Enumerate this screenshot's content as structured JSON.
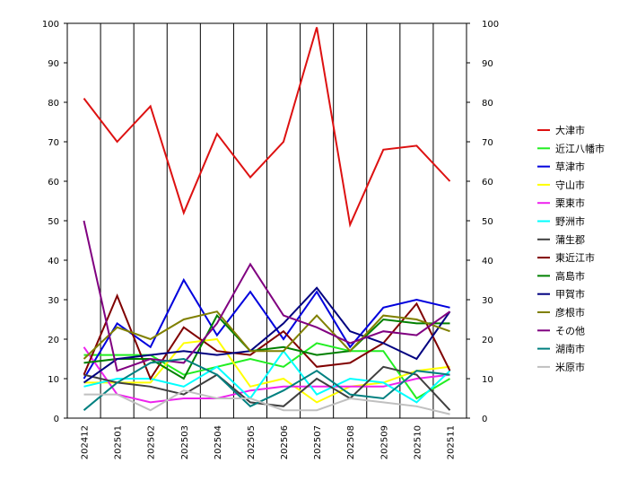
{
  "chart_data": {
    "type": "line",
    "categories": [
      "202412",
      "202501",
      "202502",
      "202503",
      "202504",
      "202505",
      "202506",
      "202507",
      "202508",
      "202509",
      "202510",
      "202511"
    ],
    "ylim": [
      0,
      100
    ],
    "y_ticks": [
      0,
      10,
      20,
      30,
      40,
      50,
      60,
      70,
      80,
      90,
      100
    ],
    "right_axis_mirrored": true,
    "grid": {
      "vertical": true,
      "horizontal": false
    },
    "legend_position": "right",
    "series": [
      {
        "name": "大津市",
        "color": "#dd1111",
        "values": [
          81,
          70,
          79,
          52,
          72,
          61,
          70,
          99,
          49,
          68,
          69,
          60
        ]
      },
      {
        "name": "近江八幡市",
        "color": "#22ee22",
        "values": [
          16,
          16,
          16,
          11,
          13,
          15,
          13,
          19,
          17,
          17,
          5,
          10
        ]
      },
      {
        "name": "草津市",
        "color": "#0000dd",
        "values": [
          10,
          24,
          18,
          35,
          21,
          32,
          20,
          32,
          18,
          28,
          30,
          28
        ]
      },
      {
        "name": "守山市",
        "color": "#ffff00",
        "values": [
          9,
          9,
          9,
          19,
          20,
          8,
          10,
          4,
          8,
          9,
          12,
          13
        ]
      },
      {
        "name": "栗東市",
        "color": "#ee22ee",
        "values": [
          18,
          6,
          4,
          5,
          5,
          7,
          8,
          8,
          8,
          8,
          10,
          11
        ]
      },
      {
        "name": "野洲市",
        "color": "#00ffff",
        "values": [
          8,
          10,
          10,
          8,
          13,
          5,
          17,
          6,
          10,
          9,
          4,
          12
        ]
      },
      {
        "name": "蒲生郡",
        "color": "#404040",
        "values": [
          11,
          9,
          8,
          6,
          11,
          4,
          3,
          10,
          5,
          13,
          11,
          2
        ]
      },
      {
        "name": "東近江市",
        "color": "#800000",
        "values": [
          11,
          31,
          10,
          23,
          17,
          16,
          22,
          13,
          14,
          19,
          29,
          12
        ]
      },
      {
        "name": "高島市",
        "color": "#008000",
        "values": [
          14,
          15,
          15,
          10,
          26,
          17,
          18,
          16,
          17,
          25,
          24,
          24
        ]
      },
      {
        "name": "甲賀市",
        "color": "#000080",
        "values": [
          9,
          15,
          16,
          17,
          16,
          17,
          24,
          33,
          22,
          19,
          15,
          27
        ]
      },
      {
        "name": "彦根市",
        "color": "#808000",
        "values": [
          15,
          23,
          20,
          25,
          27,
          17,
          17,
          26,
          17,
          26,
          25,
          22
        ]
      },
      {
        "name": "その他",
        "color": "#800080",
        "values": [
          50,
          12,
          15,
          14,
          24,
          39,
          26,
          23,
          19,
          22,
          21,
          27
        ]
      },
      {
        "name": "湖南市",
        "color": "#008080",
        "values": [
          2,
          9,
          14,
          15,
          11,
          3,
          7,
          12,
          6,
          5,
          12,
          11
        ]
      },
      {
        "name": "米原市",
        "color": "#c0c0c0",
        "values": [
          6,
          6,
          2,
          7,
          5,
          5,
          2,
          2,
          5,
          4,
          3,
          1
        ]
      }
    ]
  }
}
